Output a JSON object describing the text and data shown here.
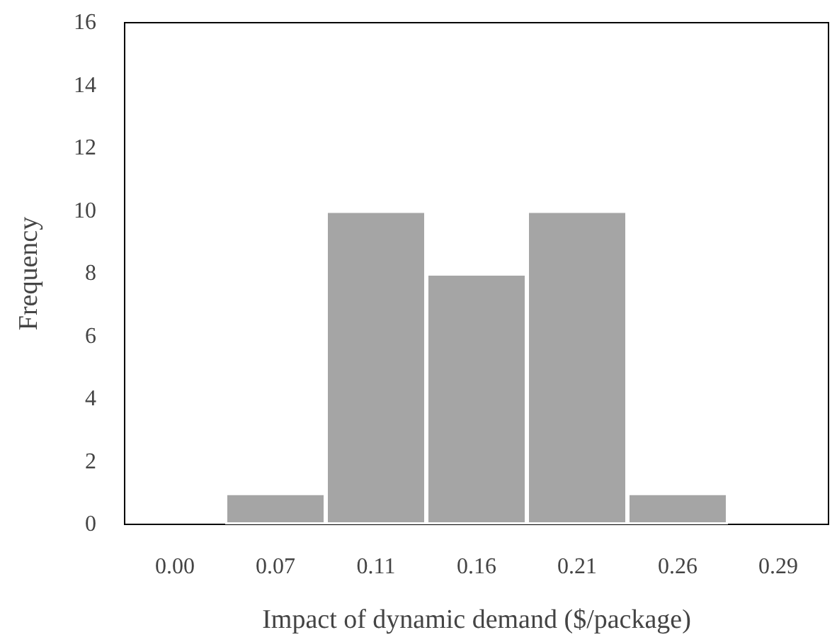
{
  "chart_data": {
    "type": "bar",
    "xlabel": "Impact of dynamic demand ($/package)",
    "ylabel": "Frequency",
    "categories": [
      "0.00",
      "0.07",
      "0.11",
      "0.16",
      "0.21",
      "0.26",
      "0.29"
    ],
    "values": [
      0,
      1,
      10,
      8,
      10,
      1,
      0
    ],
    "color": "#a5a5a5",
    "ylim": [
      0,
      16
    ],
    "yticks": [
      0,
      2,
      4,
      6,
      8,
      10,
      12,
      14,
      16
    ],
    "grid": false
  }
}
